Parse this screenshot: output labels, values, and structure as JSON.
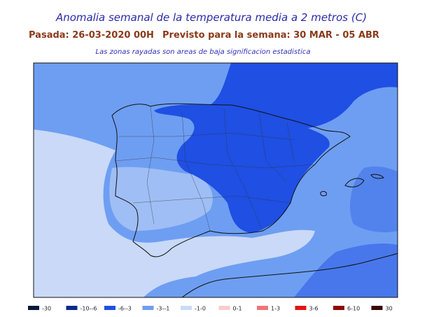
{
  "header": {
    "title": "Anomalia semanal de la temperatura media a 2 metros (C)",
    "subtitle_left": "Pasada: 26-03-2020 00H",
    "subtitle_right": "Previsto para la semana:  30 MAR - 05 ABR",
    "note": "Las zonas rayadas son areas de baja significacion estadistica"
  },
  "legend": {
    "items": [
      {
        "label": "-30",
        "color": "#081838"
      },
      {
        "label": "-10--6",
        "color": "#0a2a8c"
      },
      {
        "label": "-6--3",
        "color": "#1f4fe3"
      },
      {
        "label": "-3--1",
        "color": "#6e9ef2"
      },
      {
        "label": "-1-0",
        "color": "#c9d9f7"
      },
      {
        "label": "0-1",
        "color": "#f6cccc"
      },
      {
        "label": "1-3",
        "color": "#f07575"
      },
      {
        "label": "3-6",
        "color": "#e31414"
      },
      {
        "label": "6-10",
        "color": "#8c0a0a"
      },
      {
        "label": "30",
        "color": "#3a0808"
      }
    ]
  }
}
